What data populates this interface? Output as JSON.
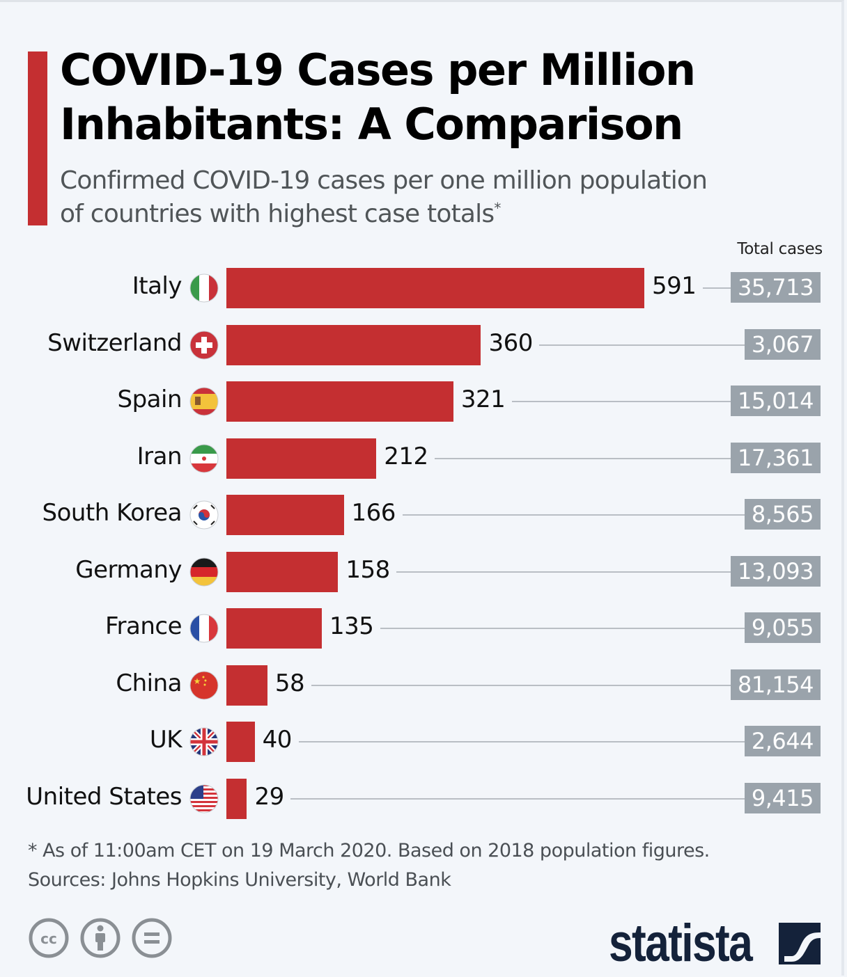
{
  "header": {
    "title_line1": "COVID-19 Cases per Million",
    "title_line2": "Inhabitants: A Comparison",
    "subtitle_line1": "Confirmed COVID-19 cases per one million population",
    "subtitle_line2": "of countries with highest case totals",
    "subtitle_marker": "*"
  },
  "colors": {
    "accent": "#c42f31",
    "bar": "#c42f31",
    "total_box": "#9aa3ab",
    "leader_line": "#b9bec4",
    "background": "#f3f6fa",
    "logo": "#14223a"
  },
  "chart_data": {
    "type": "bar",
    "orientation": "horizontal",
    "title": "COVID-19 Cases per Million Inhabitants: A Comparison",
    "subtitle": "Confirmed COVID-19 cases per one million population of countries with highest case totals*",
    "xlabel": "",
    "ylabel": "",
    "secondary_column_label": "Total cases",
    "categories": [
      "Italy",
      "Switzerland",
      "Spain",
      "Iran",
      "South Korea",
      "Germany",
      "France",
      "China",
      "UK",
      "United States"
    ],
    "flags": [
      "italy-flag",
      "switzerland-flag",
      "spain-flag",
      "iran-flag",
      "south-korea-flag",
      "germany-flag",
      "france-flag",
      "china-flag",
      "uk-flag",
      "usa-flag"
    ],
    "series": [
      {
        "name": "Cases per million",
        "values": [
          591,
          360,
          321,
          212,
          166,
          158,
          135,
          58,
          40,
          29
        ]
      },
      {
        "name": "Total cases",
        "values": [
          35713,
          3067,
          15014,
          17361,
          8565,
          13093,
          9055,
          81154,
          2644,
          9415
        ]
      }
    ],
    "value_labels": [
      "591",
      "360",
      "321",
      "212",
      "166",
      "158",
      "135",
      "58",
      "40",
      "29"
    ],
    "total_labels": [
      "35,713",
      "3,067",
      "15,014",
      "17,361",
      "8,565",
      "13,093",
      "9,055",
      "81,154",
      "2,644",
      "9,415"
    ],
    "xlim": [
      0,
      591
    ],
    "grid": false,
    "legend": "none"
  },
  "footer": {
    "note": "* As of 11:00am CET on 19 March 2020. Based on 2018 population figures.",
    "sources": "Sources: Johns Hopkins University, World Bank",
    "license_icons": [
      "cc-icon",
      "attribution-icon",
      "no-derivatives-icon"
    ],
    "brand": "statista"
  }
}
